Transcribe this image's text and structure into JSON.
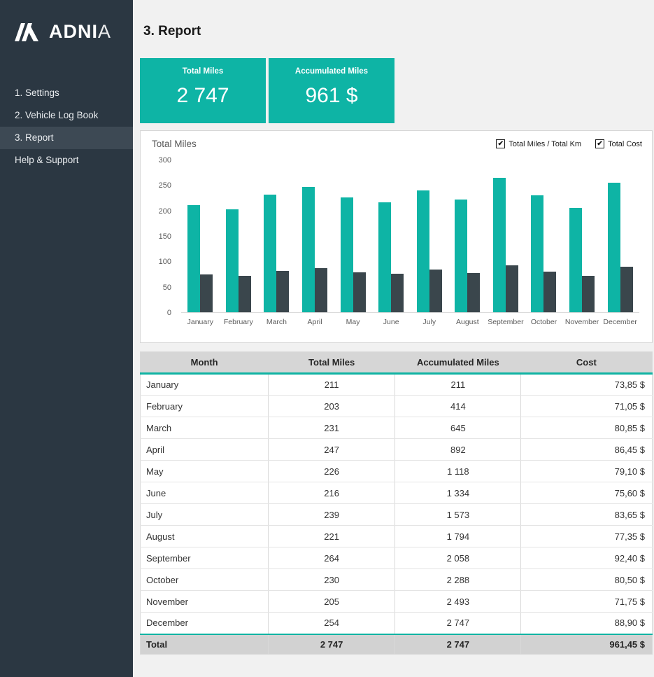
{
  "brand": {
    "icon": "adnia-logo",
    "bold": "ADNI",
    "light": "A"
  },
  "sidebar": {
    "items": [
      {
        "label": "1. Settings",
        "active": false
      },
      {
        "label": "2. Vehicle Log Book",
        "active": false
      },
      {
        "label": "3. Report",
        "active": true
      },
      {
        "label": "Help & Support",
        "active": false
      }
    ]
  },
  "header": {
    "title": "3. Report"
  },
  "cards": [
    {
      "label": "Total Miles",
      "value": "2 747"
    },
    {
      "label": "Accumulated Miles",
      "value": "961 $"
    }
  ],
  "icons": {
    "checkmark": "✔"
  },
  "chart": {
    "title": "Total Miles",
    "legend": [
      {
        "label": "Total Miles / Total Km",
        "checked": true
      },
      {
        "label": "Total Cost",
        "checked": true
      }
    ]
  },
  "chart_data": {
    "type": "bar",
    "title": "Total Miles",
    "categories": [
      "January",
      "February",
      "March",
      "April",
      "May",
      "June",
      "July",
      "August",
      "September",
      "October",
      "November",
      "December"
    ],
    "series": [
      {
        "name": "Total Miles / Total Km",
        "color": "#0eb4a5",
        "values": [
          211,
          203,
          231,
          247,
          226,
          216,
          239,
          221,
          264,
          230,
          205,
          254
        ]
      },
      {
        "name": "Total Cost",
        "color": "#3a464c",
        "values": [
          73.85,
          71.05,
          80.85,
          86.45,
          79.1,
          75.6,
          83.65,
          77.35,
          92.4,
          80.5,
          71.75,
          88.9
        ]
      }
    ],
    "xlabel": "",
    "ylabel": "",
    "ylim": [
      0,
      300
    ],
    "ytick_step": 50,
    "grid": false,
    "legend_position": "top-right"
  },
  "table": {
    "columns": [
      "Month",
      "Total Miles",
      "Accumulated Miles",
      "Cost"
    ],
    "rows": [
      [
        "January",
        "211",
        "211",
        "73,85 $"
      ],
      [
        "February",
        "203",
        "414",
        "71,05 $"
      ],
      [
        "March",
        "231",
        "645",
        "80,85 $"
      ],
      [
        "April",
        "247",
        "892",
        "86,45 $"
      ],
      [
        "May",
        "226",
        "1 118",
        "79,10 $"
      ],
      [
        "June",
        "216",
        "1 334",
        "75,60 $"
      ],
      [
        "July",
        "239",
        "1 573",
        "83,65 $"
      ],
      [
        "August",
        "221",
        "1 794",
        "77,35 $"
      ],
      [
        "September",
        "264",
        "2 058",
        "92,40 $"
      ],
      [
        "October",
        "230",
        "2 288",
        "80,50 $"
      ],
      [
        "November",
        "205",
        "2 493",
        "71,75 $"
      ],
      [
        "December",
        "254",
        "2 747",
        "88,90 $"
      ]
    ],
    "total": [
      "Total",
      "2 747",
      "2 747",
      "961,45 $"
    ]
  },
  "colors": {
    "accent_teal": "#0eb4a5",
    "dark_bar": "#3a464c",
    "sidebar_bg": "#2b3742",
    "sidebar_active_bg": "#3d4954",
    "main_bg": "#f1f1f1"
  }
}
